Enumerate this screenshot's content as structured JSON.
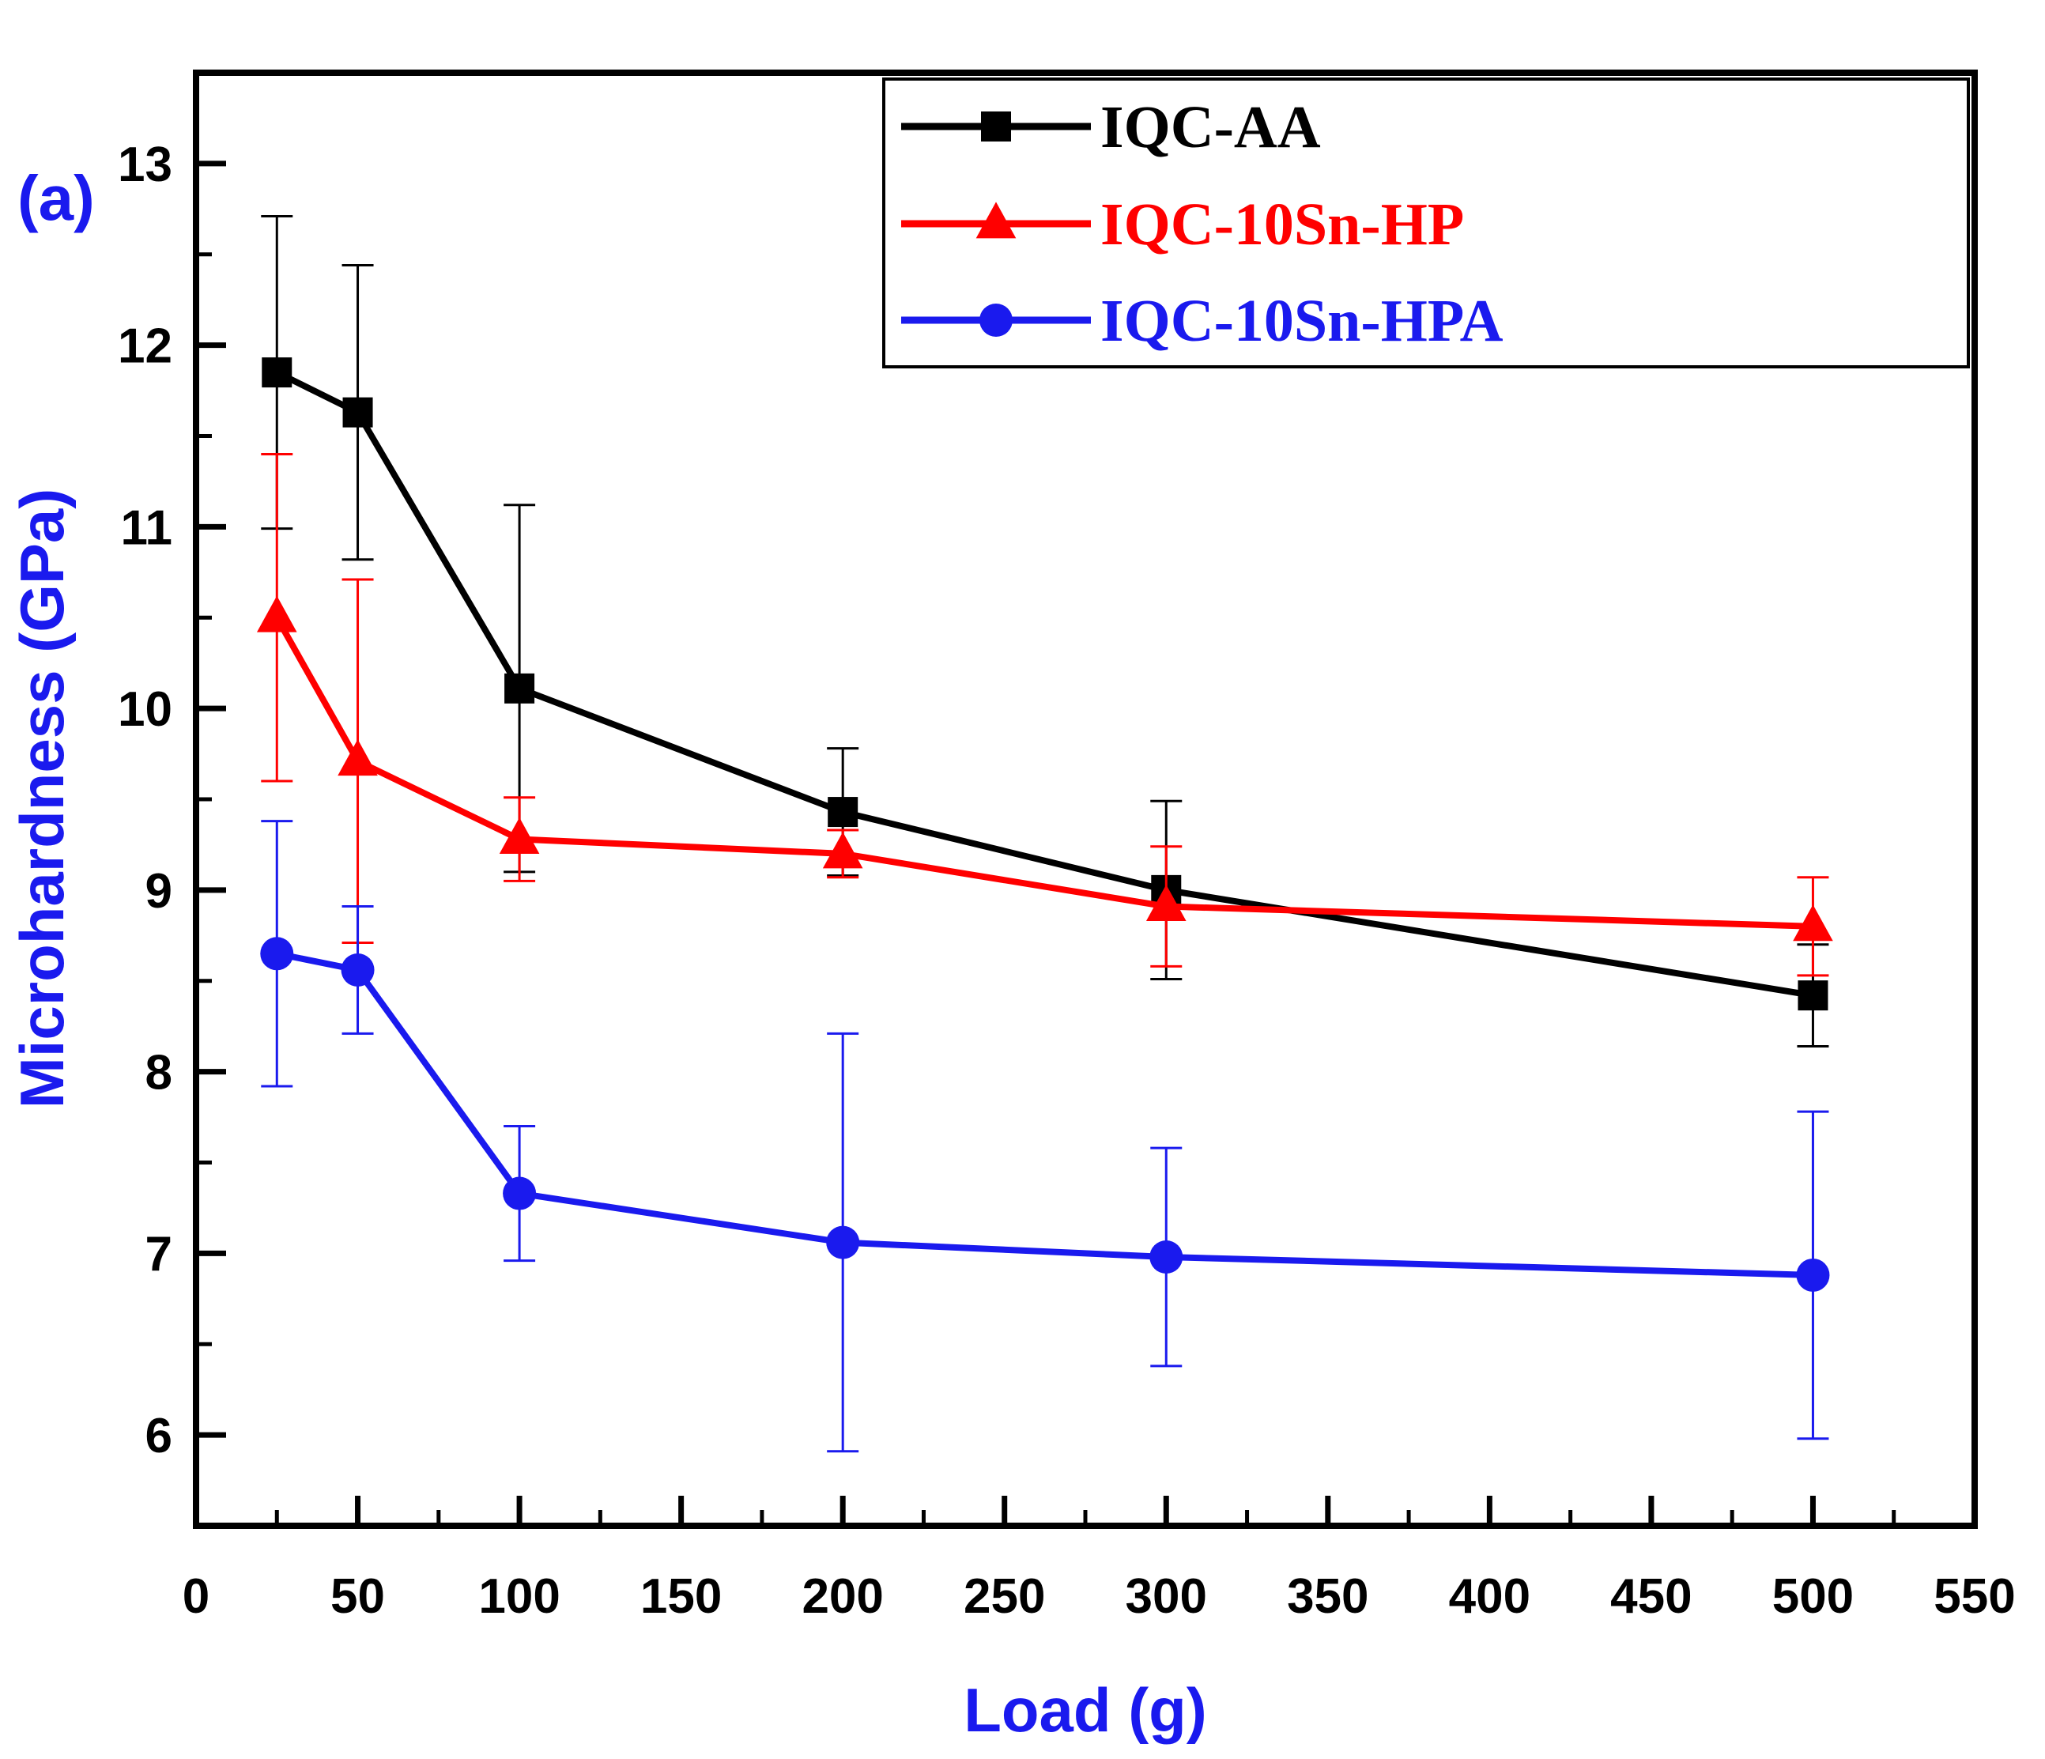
{
  "chart_data": {
    "type": "line",
    "panel_label": "(a)",
    "xlabel": "Load (g)",
    "ylabel": "Microhardness (GPa)",
    "xlim": [
      0,
      550
    ],
    "ylim": [
      5.5,
      13.5
    ],
    "x_ticks": [
      0,
      50,
      100,
      150,
      200,
      250,
      300,
      350,
      400,
      450,
      500,
      550
    ],
    "y_ticks": [
      6,
      7,
      8,
      9,
      10,
      11,
      12,
      13
    ],
    "grid": false,
    "legend_position": "top-right",
    "x": [
      25,
      50,
      100,
      200,
      300,
      500
    ],
    "series": [
      {
        "name": "IQC-AA",
        "color": "#000000",
        "marker": "square",
        "values": [
          11.85,
          11.63,
          10.11,
          9.43,
          9.0,
          8.42
        ],
        "error": [
          0.86,
          0.81,
          1.01,
          0.35,
          0.49,
          0.28
        ]
      },
      {
        "name": "IQC-10Sn-HP",
        "color": "#ff0000",
        "marker": "triangle",
        "values": [
          10.5,
          9.71,
          9.28,
          9.2,
          8.91,
          8.8
        ],
        "error": [
          0.9,
          1.0,
          0.23,
          0.13,
          0.33,
          0.27
        ]
      },
      {
        "name": "IQC-10Sn-HPA",
        "color": "#1a1aee",
        "marker": "circle",
        "values": [
          8.65,
          8.56,
          7.33,
          7.06,
          6.98,
          6.88
        ],
        "error": [
          0.73,
          0.35,
          0.37,
          1.15,
          0.6,
          0.9
        ]
      }
    ],
    "colors": {
      "axis": "#000000",
      "axis_title": "#1a1aee",
      "panel_label": "#1a1aee"
    }
  }
}
